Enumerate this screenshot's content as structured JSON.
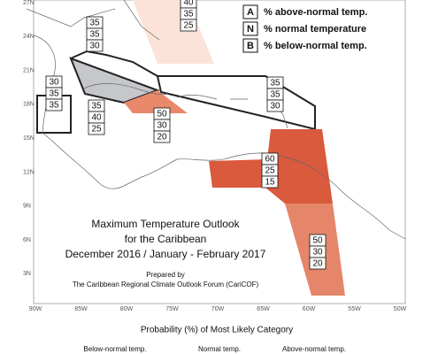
{
  "title": [
    "Maximum Temperature Outlook",
    "for the Caribbean",
    "December 2016 / January - February 2017"
  ],
  "credit": [
    "Prepared by",
    "The Caribbean Regional Climate Outlook Forum (CariCOF)"
  ],
  "legend": [
    {
      "key": "A",
      "label": "% above-normal temp."
    },
    {
      "key": "N",
      "label": "% normal temperature"
    },
    {
      "key": "B",
      "label": "% below-normal temp."
    }
  ],
  "latitudes": [
    "27N",
    "24N",
    "21N",
    "18N",
    "15N",
    "12N",
    "9N",
    "6N",
    "3N"
  ],
  "longitudes": [
    "90W",
    "85W",
    "80W",
    "75W",
    "70W",
    "65W",
    "60W",
    "55W",
    "50W"
  ],
  "regions": [
    {
      "values": [
        40,
        35,
        25
      ]
    },
    {
      "values": [
        35,
        35,
        30
      ]
    },
    {
      "values": [
        30,
        35,
        35
      ]
    },
    {
      "values": [
        35,
        40,
        25
      ]
    },
    {
      "values": [
        35,
        35,
        30
      ]
    },
    {
      "values": [
        50,
        30,
        20
      ]
    },
    {
      "values": [
        60,
        25,
        15
      ]
    },
    {
      "values": [
        50,
        30,
        20
      ]
    }
  ],
  "scale_title": "Probability (%) of Most Likely Category",
  "scale_labels": [
    "Below-normal temp.",
    "Normal temp.",
    "Above-normal temp."
  ]
}
